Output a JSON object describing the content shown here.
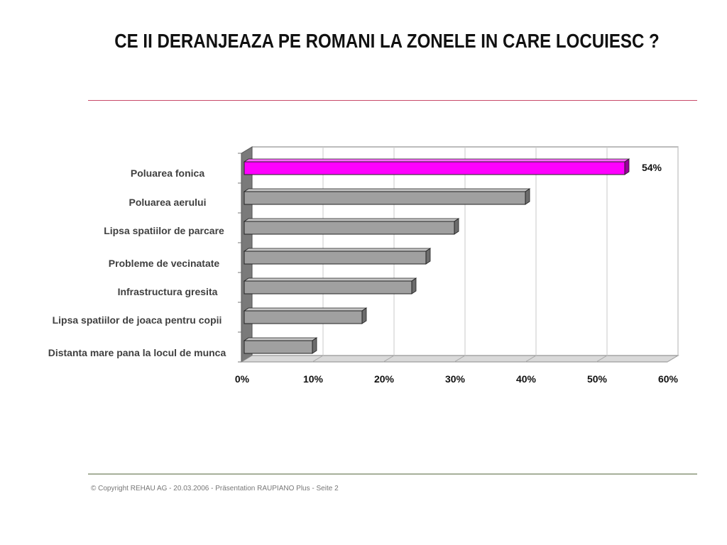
{
  "slide": {
    "title": "CE II DERANJEAZA PE ROMANI LA ZONELE IN CARE LOCUIESC ?",
    "footer": "© Copyright REHAU AG  -  20.03.2006 - Präsentation RAUPIANO Plus - Seite 2"
  },
  "colors": {
    "highlight_bar": "#ff00ff",
    "default_bar": "#a0a0a0",
    "rule_top": "#c94a6a",
    "rule_bottom": "#a7b09a"
  },
  "chart_data": {
    "type": "bar",
    "orientation": "horizontal",
    "style": "3d",
    "title": "",
    "xlabel": "",
    "ylabel": "",
    "categories": [
      "Poluarea fonica",
      "Poluarea aerului",
      "Lipsa spatiilor de parcare",
      "Probleme de vecinatate",
      "Infrastructura gresita",
      "Lipsa spatiilor de joaca pentru copii",
      "Distanta mare pana la locul de munca"
    ],
    "values": [
      54,
      40,
      30,
      26,
      24,
      17,
      10
    ],
    "highlight_index": 0,
    "data_labels": [
      {
        "index": 0,
        "text": "54%"
      }
    ],
    "xlim": [
      0,
      60
    ],
    "x_ticks": [
      {
        "value": 0,
        "label": "0%"
      },
      {
        "value": 10,
        "label": "10%"
      },
      {
        "value": 20,
        "label": "20%"
      },
      {
        "value": 30,
        "label": "30%"
      },
      {
        "value": 40,
        "label": "40%"
      },
      {
        "value": 50,
        "label": "50%"
      },
      {
        "value": 60,
        "label": "60%"
      }
    ],
    "grid": true,
    "legend": "none"
  }
}
